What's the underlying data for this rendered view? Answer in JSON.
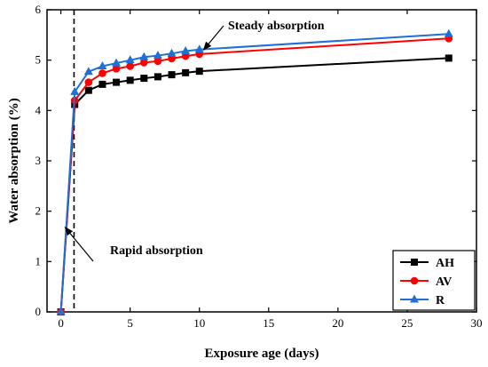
{
  "chart_data": {
    "type": "line",
    "xlabel": "Exposure age (days)",
    "ylabel": "Water absorption (%)",
    "xlim": [
      -1,
      30
    ],
    "ylim": [
      0,
      6
    ],
    "xticks": [
      0,
      5,
      10,
      15,
      20,
      25,
      30
    ],
    "yticks": [
      0,
      1,
      2,
      3,
      4,
      5,
      6
    ],
    "grid": false,
    "legend_position": "bottom-right",
    "x": [
      0,
      1,
      2,
      3,
      4,
      5,
      6,
      7,
      8,
      9,
      10,
      28
    ],
    "series": [
      {
        "name": "AH",
        "color": "#000000",
        "marker": "square",
        "values": [
          0,
          4.12,
          4.4,
          4.52,
          4.56,
          4.6,
          4.64,
          4.67,
          4.71,
          4.75,
          4.78,
          5.04
        ]
      },
      {
        "name": "AV",
        "color": "#ff0000",
        "marker": "circle",
        "values": [
          0,
          4.2,
          4.56,
          4.74,
          4.83,
          4.88,
          4.95,
          4.98,
          5.03,
          5.08,
          5.12,
          5.43
        ]
      },
      {
        "name": "R",
        "color": "#1f6fd6",
        "marker": "triangle",
        "values": [
          0,
          4.37,
          4.77,
          4.88,
          4.94,
          5.0,
          5.06,
          5.09,
          5.13,
          5.18,
          5.21,
          5.52
        ]
      }
    ],
    "annotations": [
      {
        "text": "Steady absorption",
        "arrow_to": [
          10.3,
          5.15
        ]
      },
      {
        "text": "Rapid absorption",
        "arrow_to": [
          0.3,
          1.68
        ]
      }
    ],
    "divider_x": 0.95
  }
}
